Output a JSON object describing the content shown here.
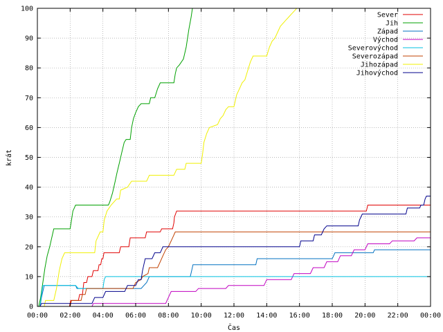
{
  "chart_data": {
    "type": "line",
    "title": "",
    "xlabel": "Čas",
    "ylabel": "krát",
    "xlim": [
      0,
      1440
    ],
    "ylim": [
      0,
      100
    ],
    "grid": true,
    "legend_position": "top-right",
    "x_ticks": [
      {
        "value": 0,
        "label": "00:00"
      },
      {
        "value": 120,
        "label": "02:00"
      },
      {
        "value": 240,
        "label": "04:00"
      },
      {
        "value": 360,
        "label": "06:00"
      },
      {
        "value": 480,
        "label": "08:00"
      },
      {
        "value": 600,
        "label": "10:00"
      },
      {
        "value": 720,
        "label": "12:00"
      },
      {
        "value": 840,
        "label": "14:00"
      },
      {
        "value": 960,
        "label": "16:00"
      },
      {
        "value": 1080,
        "label": "18:00"
      },
      {
        "value": 1200,
        "label": "20:00"
      },
      {
        "value": 1320,
        "label": "22:00"
      },
      {
        "value": 1440,
        "label": "00:00"
      }
    ],
    "y_ticks": [
      0,
      10,
      20,
      30,
      40,
      50,
      60,
      70,
      80,
      90,
      100
    ],
    "series": [
      {
        "name": "Sever",
        "color": "#e00000",
        "points": [
          [
            0,
            0
          ],
          [
            118,
            0
          ],
          [
            122,
            2
          ],
          [
            150,
            2
          ],
          [
            155,
            4
          ],
          [
            165,
            4
          ],
          [
            170,
            8
          ],
          [
            180,
            8
          ],
          [
            185,
            10
          ],
          [
            200,
            10
          ],
          [
            205,
            12
          ],
          [
            222,
            12
          ],
          [
            226,
            14
          ],
          [
            232,
            14
          ],
          [
            236,
            16
          ],
          [
            240,
            16
          ],
          [
            244,
            18
          ],
          [
            300,
            18
          ],
          [
            305,
            20
          ],
          [
            335,
            20
          ],
          [
            340,
            23
          ],
          [
            395,
            23
          ],
          [
            400,
            25
          ],
          [
            450,
            25
          ],
          [
            455,
            26
          ],
          [
            495,
            26
          ],
          [
            500,
            28
          ],
          [
            502,
            30
          ],
          [
            510,
            32
          ],
          [
            1205,
            32
          ],
          [
            1210,
            34
          ],
          [
            1440,
            34
          ]
        ]
      },
      {
        "name": "Jih",
        "color": "#00a000",
        "points": [
          [
            0,
            0
          ],
          [
            5,
            0
          ],
          [
            12,
            3
          ],
          [
            20,
            8
          ],
          [
            28,
            13
          ],
          [
            36,
            17
          ],
          [
            45,
            20
          ],
          [
            55,
            24
          ],
          [
            60,
            26
          ],
          [
            120,
            26
          ],
          [
            125,
            29
          ],
          [
            130,
            32
          ],
          [
            135,
            33
          ],
          [
            140,
            34
          ],
          [
            260,
            34
          ],
          [
            265,
            35
          ],
          [
            275,
            38
          ],
          [
            285,
            42
          ],
          [
            292,
            45
          ],
          [
            300,
            48
          ],
          [
            310,
            52
          ],
          [
            318,
            55
          ],
          [
            325,
            56
          ],
          [
            340,
            56
          ],
          [
            345,
            60
          ],
          [
            352,
            63
          ],
          [
            360,
            65
          ],
          [
            370,
            67
          ],
          [
            380,
            68
          ],
          [
            410,
            68
          ],
          [
            415,
            70
          ],
          [
            430,
            70
          ],
          [
            440,
            73
          ],
          [
            450,
            75
          ],
          [
            500,
            75
          ],
          [
            505,
            78
          ],
          [
            510,
            80
          ],
          [
            520,
            81
          ],
          [
            535,
            83
          ],
          [
            545,
            87
          ],
          [
            555,
            93
          ],
          [
            563,
            97
          ],
          [
            568,
            100
          ],
          [
            600,
            100
          ]
        ]
      },
      {
        "name": "Západ",
        "color": "#0070c0",
        "points": [
          [
            0,
            0
          ],
          [
            10,
            0
          ],
          [
            15,
            3
          ],
          [
            20,
            5
          ],
          [
            25,
            7
          ],
          [
            140,
            7
          ],
          [
            145,
            6
          ],
          [
            380,
            6
          ],
          [
            390,
            7
          ],
          [
            400,
            8
          ],
          [
            405,
            9
          ],
          [
            410,
            10
          ],
          [
            560,
            10
          ],
          [
            565,
            12
          ],
          [
            570,
            14
          ],
          [
            800,
            14
          ],
          [
            805,
            16
          ],
          [
            1080,
            16
          ],
          [
            1085,
            17
          ],
          [
            1090,
            18
          ],
          [
            1230,
            18
          ],
          [
            1235,
            19
          ],
          [
            1440,
            19
          ]
        ]
      },
      {
        "name": "Východ",
        "color": "#c000c0",
        "points": [
          [
            0,
            0
          ],
          [
            200,
            0
          ],
          [
            205,
            1
          ],
          [
            470,
            1
          ],
          [
            480,
            3
          ],
          [
            490,
            5
          ],
          [
            580,
            5
          ],
          [
            590,
            6
          ],
          [
            690,
            6
          ],
          [
            700,
            7
          ],
          [
            830,
            7
          ],
          [
            840,
            9
          ],
          [
            930,
            9
          ],
          [
            940,
            11
          ],
          [
            1000,
            11
          ],
          [
            1010,
            13
          ],
          [
            1050,
            13
          ],
          [
            1060,
            15
          ],
          [
            1100,
            15
          ],
          [
            1110,
            17
          ],
          [
            1150,
            17
          ],
          [
            1160,
            19
          ],
          [
            1200,
            19
          ],
          [
            1210,
            21
          ],
          [
            1290,
            21
          ],
          [
            1300,
            22
          ],
          [
            1380,
            22
          ],
          [
            1390,
            23
          ],
          [
            1440,
            23
          ]
        ]
      },
      {
        "name": "Severovýchod",
        "color": "#00c0e0",
        "points": [
          [
            0,
            0
          ],
          [
            10,
            0
          ],
          [
            15,
            4
          ],
          [
            20,
            7
          ],
          [
            140,
            7
          ],
          [
            150,
            6
          ],
          [
            240,
            6
          ],
          [
            245,
            9
          ],
          [
            250,
            10
          ],
          [
            1440,
            10
          ]
        ]
      },
      {
        "name": "Severozápad",
        "color": "#c04000",
        "points": [
          [
            0,
            0
          ],
          [
            120,
            0
          ],
          [
            125,
            2
          ],
          [
            160,
            2
          ],
          [
            165,
            4
          ],
          [
            175,
            4
          ],
          [
            180,
            6
          ],
          [
            350,
            6
          ],
          [
            360,
            8
          ],
          [
            380,
            9
          ],
          [
            385,
            10
          ],
          [
            405,
            11
          ],
          [
            410,
            13
          ],
          [
            440,
            13
          ],
          [
            450,
            15
          ],
          [
            460,
            17
          ],
          [
            470,
            19
          ],
          [
            480,
            20
          ],
          [
            485,
            21
          ],
          [
            495,
            23
          ],
          [
            505,
            25
          ],
          [
            1440,
            25
          ]
        ]
      },
      {
        "name": "Jihozápad",
        "color": "#f0f000",
        "points": [
          [
            0,
            0
          ],
          [
            25,
            0
          ],
          [
            30,
            2
          ],
          [
            60,
            2
          ],
          [
            70,
            6
          ],
          [
            80,
            12
          ],
          [
            90,
            16
          ],
          [
            100,
            18
          ],
          [
            210,
            18
          ],
          [
            215,
            22
          ],
          [
            230,
            25
          ],
          [
            240,
            25
          ],
          [
            245,
            29
          ],
          [
            255,
            32
          ],
          [
            270,
            34
          ],
          [
            290,
            36
          ],
          [
            300,
            36
          ],
          [
            305,
            39
          ],
          [
            330,
            40
          ],
          [
            345,
            42
          ],
          [
            400,
            42
          ],
          [
            410,
            44
          ],
          [
            500,
            44
          ],
          [
            510,
            46
          ],
          [
            540,
            46
          ],
          [
            545,
            48
          ],
          [
            600,
            48
          ],
          [
            605,
            51
          ],
          [
            610,
            55
          ],
          [
            620,
            58
          ],
          [
            630,
            60
          ],
          [
            660,
            61
          ],
          [
            670,
            63
          ],
          [
            680,
            64
          ],
          [
            690,
            66
          ],
          [
            700,
            67
          ],
          [
            720,
            67
          ],
          [
            730,
            71
          ],
          [
            740,
            73
          ],
          [
            750,
            75
          ],
          [
            760,
            76
          ],
          [
            770,
            79
          ],
          [
            780,
            82
          ],
          [
            790,
            84
          ],
          [
            840,
            84
          ],
          [
            850,
            87
          ],
          [
            860,
            89
          ],
          [
            870,
            90
          ],
          [
            880,
            92
          ],
          [
            890,
            94
          ],
          [
            900,
            95
          ],
          [
            910,
            96
          ],
          [
            920,
            97
          ],
          [
            930,
            98
          ],
          [
            940,
            99
          ],
          [
            950,
            100
          ],
          [
            970,
            100
          ]
        ]
      },
      {
        "name": "Jihovýchod",
        "color": "#00008b",
        "points": [
          [
            0,
            0
          ],
          [
            10,
            0
          ],
          [
            15,
            1
          ],
          [
            200,
            1
          ],
          [
            210,
            3
          ],
          [
            240,
            3
          ],
          [
            250,
            5
          ],
          [
            320,
            5
          ],
          [
            330,
            7
          ],
          [
            360,
            7
          ],
          [
            370,
            9
          ],
          [
            380,
            9
          ],
          [
            385,
            12
          ],
          [
            390,
            14
          ],
          [
            395,
            16
          ],
          [
            420,
            16
          ],
          [
            430,
            18
          ],
          [
            450,
            18
          ],
          [
            460,
            20
          ],
          [
            960,
            20
          ],
          [
            965,
            22
          ],
          [
            1010,
            22
          ],
          [
            1015,
            24
          ],
          [
            1040,
            24
          ],
          [
            1050,
            26
          ],
          [
            1060,
            27
          ],
          [
            1175,
            27
          ],
          [
            1180,
            29
          ],
          [
            1190,
            31
          ],
          [
            1350,
            31
          ],
          [
            1355,
            33
          ],
          [
            1400,
            33
          ],
          [
            1405,
            34
          ],
          [
            1415,
            34
          ],
          [
            1420,
            36
          ],
          [
            1425,
            37
          ],
          [
            1440,
            37
          ]
        ]
      }
    ]
  }
}
